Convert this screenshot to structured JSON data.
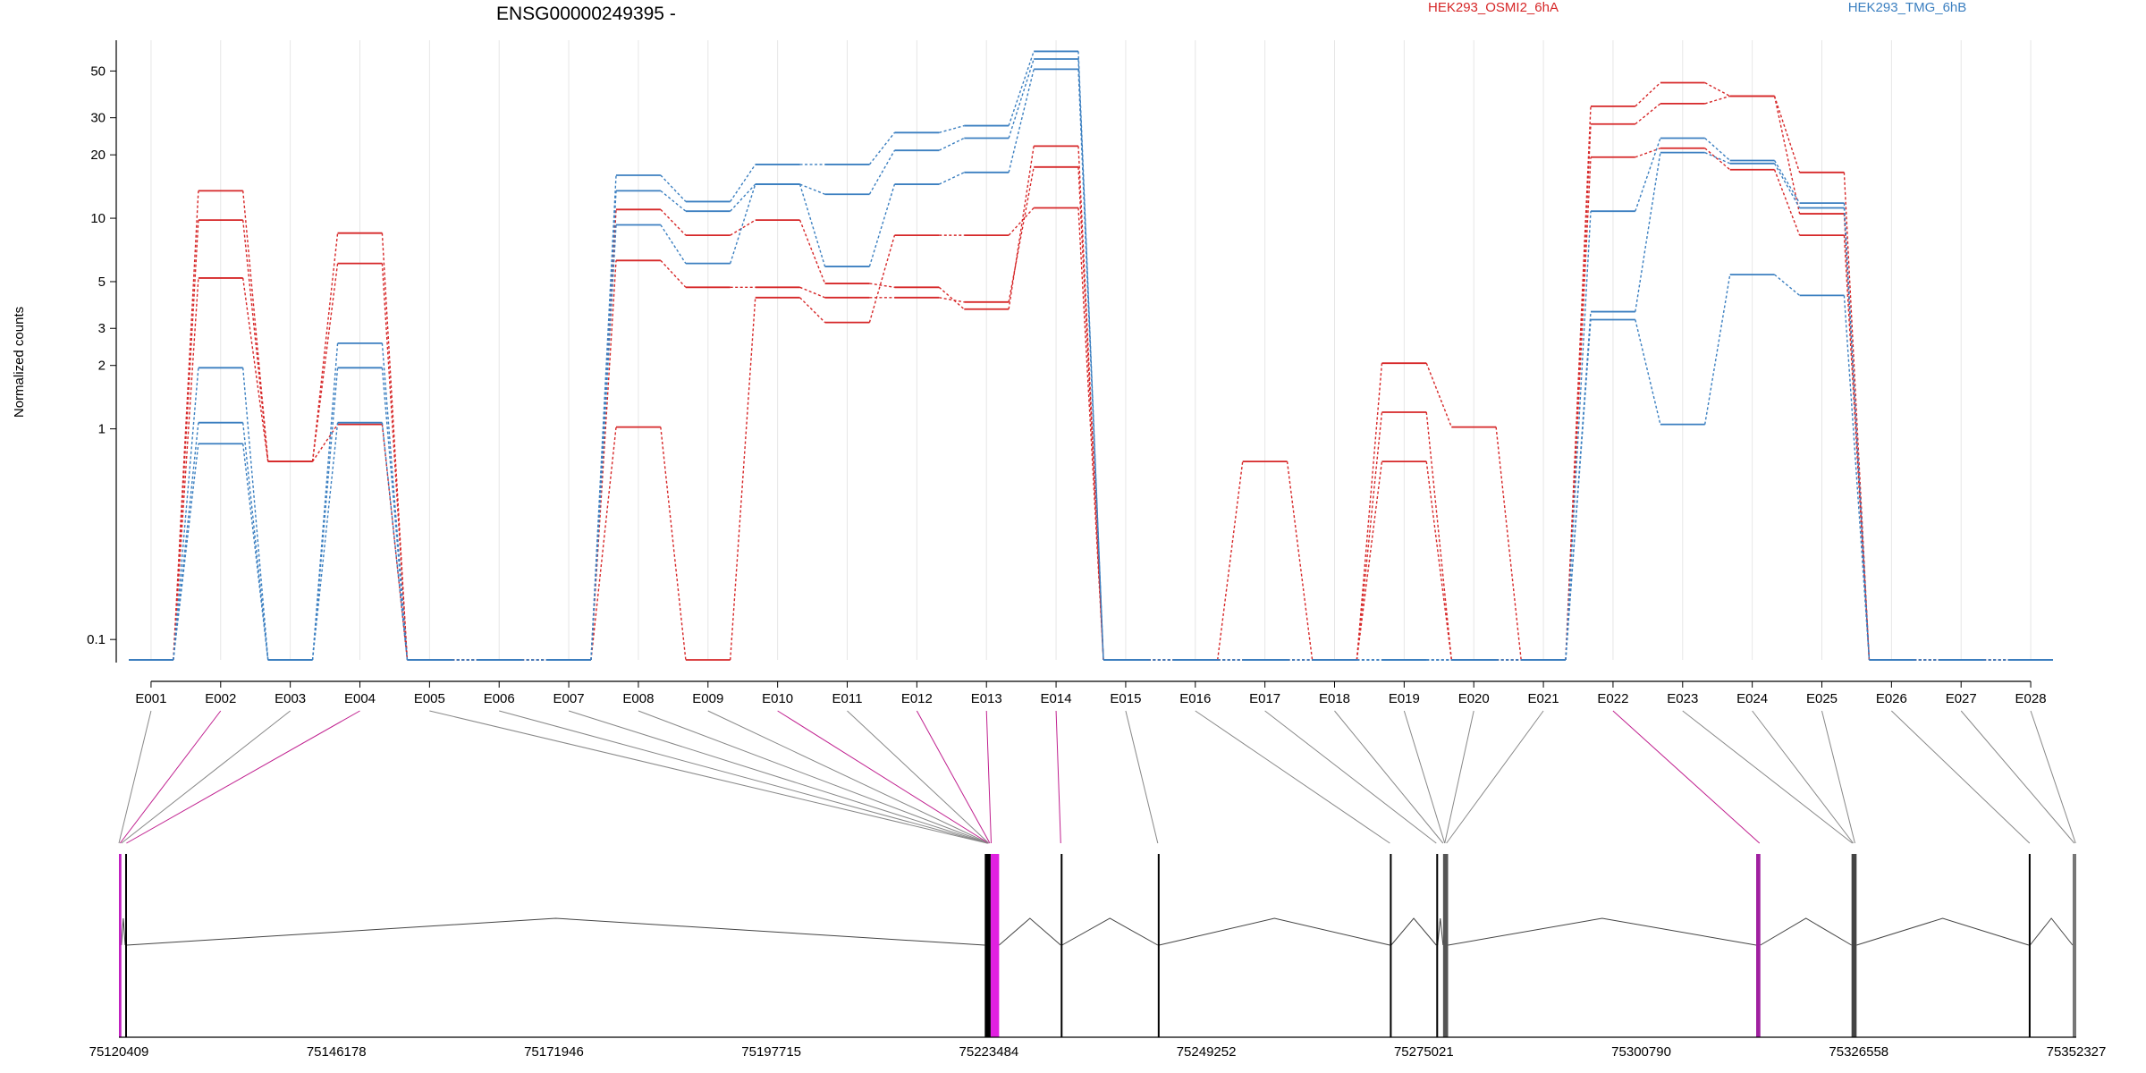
{
  "chart_data": {
    "type": "line",
    "title": "ENSG00000249395 -",
    "ylabel": "Normalized counts",
    "xlabel": "",
    "y_scale": "log",
    "ylim": [
      0.08,
      70
    ],
    "y_ticks": [
      0.1,
      1,
      2,
      3,
      5,
      10,
      20,
      30,
      50
    ],
    "y_tick_labels": [
      "0.1",
      "1",
      "2",
      "3",
      "5",
      "10",
      "20",
      "30",
      "50"
    ],
    "grid": "vertical",
    "legend_position": "top",
    "categories": [
      "E001",
      "E002",
      "E003",
      "E004",
      "E005",
      "E006",
      "E007",
      "E008",
      "E009",
      "E010",
      "E011",
      "E012",
      "E013",
      "E014",
      "E015",
      "E016",
      "E017",
      "E018",
      "E019",
      "E020",
      "E021",
      "E022",
      "E023",
      "E024",
      "E025",
      "E026",
      "E027",
      "E028"
    ],
    "groups": [
      {
        "name": "HEK293_OSMI2_6hA",
        "color": "#d62728"
      },
      {
        "name": "HEK293_TMG_6hB",
        "color": "#3b7fc0"
      }
    ],
    "series": [
      {
        "group": 0,
        "values": [
          0.08,
          13.5,
          0.7,
          8.5,
          0.08,
          0.08,
          0.08,
          11,
          8.3,
          9.8,
          4.9,
          4.7,
          3.7,
          22,
          0.08,
          0.08,
          0.7,
          0.08,
          2.05,
          1.02,
          0.08,
          34,
          44,
          38,
          16.5,
          0.08,
          0.08,
          0.08
        ]
      },
      {
        "group": 0,
        "values": [
          0.08,
          9.8,
          0.7,
          6.1,
          0.08,
          0.08,
          0.08,
          6.3,
          4.7,
          4.7,
          4.2,
          4.2,
          4,
          17.5,
          0.08,
          0.08,
          0.08,
          0.08,
          1.2,
          0.08,
          0.08,
          28,
          35,
          38,
          10.5,
          0.08,
          0.08,
          0.08
        ]
      },
      {
        "group": 0,
        "values": [
          0.08,
          5.2,
          0.7,
          1.05,
          0.08,
          0.08,
          0.08,
          1.02,
          0.08,
          4.2,
          3.2,
          8.3,
          8.3,
          11.2,
          0.08,
          0.08,
          0.08,
          0.08,
          0.7,
          0.08,
          0.08,
          19.5,
          21.5,
          17,
          8.3,
          0.08,
          0.08,
          0.08
        ]
      },
      {
        "group": 1,
        "values": [
          0.08,
          1.95,
          0.08,
          2.55,
          0.08,
          0.08,
          0.08,
          16,
          12,
          18,
          18,
          25.5,
          27.5,
          62,
          0.08,
          0.08,
          0.08,
          0.08,
          0.08,
          0.08,
          0.08,
          10.8,
          24,
          18.8,
          11.8,
          0.08,
          0.08,
          0.08
        ]
      },
      {
        "group": 1,
        "values": [
          0.08,
          1.07,
          0.08,
          1.95,
          0.08,
          0.08,
          0.08,
          13.5,
          10.8,
          14.5,
          13,
          21,
          24,
          57,
          0.08,
          0.08,
          0.08,
          0.08,
          0.08,
          0.08,
          0.08,
          3.6,
          20.5,
          18.2,
          11.2,
          0.08,
          0.08,
          0.08
        ]
      },
      {
        "group": 1,
        "values": [
          0.08,
          0.85,
          0.08,
          1.07,
          0.08,
          0.08,
          0.08,
          9.3,
          6.1,
          14.5,
          5.9,
          14.5,
          16.5,
          51,
          0.08,
          0.08,
          0.08,
          0.08,
          0.08,
          0.08,
          0.08,
          3.3,
          1.05,
          5.4,
          4.3,
          0.08,
          0.08,
          0.08
        ]
      }
    ],
    "genomic_axis": {
      "range": [
        75120409,
        75352327
      ],
      "tick_values": [
        75120409,
        75146178,
        75171946,
        75197715,
        75223484,
        75249252,
        75275021,
        75300790,
        75326558,
        75352327
      ],
      "tick_labels": [
        "75120409",
        "75146178",
        "75171946",
        "75197715",
        "75223484",
        "75249252",
        "75275021",
        "75300790",
        "75326558",
        "75352327"
      ]
    },
    "exon_coordinates": [
      75120409,
      75120550,
      75120700,
      75121300,
      75223300,
      75223330,
      75223360,
      75223390,
      75223420,
      75223450,
      75223480,
      75223600,
      75223760,
      75232000,
      75243500,
      75271000,
      75276500,
      75277300,
      75277500,
      75277500,
      75277700,
      75314800,
      75325800,
      75325900,
      75326100,
      75346800,
      75352100,
      75352250
    ],
    "highlighted_exons": [
      "E002",
      "E004",
      "E010",
      "E012",
      "E013",
      "E014",
      "E022"
    ],
    "highlight_color": "#c0208f",
    "exon_ranges": [
      {
        "start": 75120409,
        "end": 75120700,
        "color": "#c020c0"
      },
      {
        "start": 75121150,
        "end": 75121330,
        "color": "#000000"
      },
      {
        "start": 75223000,
        "end": 75223700,
        "color": "#000000"
      },
      {
        "start": 75223700,
        "end": 75224700,
        "color": "#e020e0"
      },
      {
        "start": 75232000,
        "end": 75232150,
        "color": "#000000"
      },
      {
        "start": 75243500,
        "end": 75243650,
        "color": "#000000"
      },
      {
        "start": 75271000,
        "end": 75271150,
        "color": "#000000"
      },
      {
        "start": 75276500,
        "end": 75276650,
        "color": "#000000"
      },
      {
        "start": 75277300,
        "end": 75277900,
        "color": "#555555"
      },
      {
        "start": 75314400,
        "end": 75314900,
        "color": "#a020a0"
      },
      {
        "start": 75325700,
        "end": 75326300,
        "color": "#444444"
      },
      {
        "start": 75346700,
        "end": 75346850,
        "color": "#000000"
      },
      {
        "start": 75351900,
        "end": 75352327,
        "color": "#777777"
      }
    ]
  }
}
